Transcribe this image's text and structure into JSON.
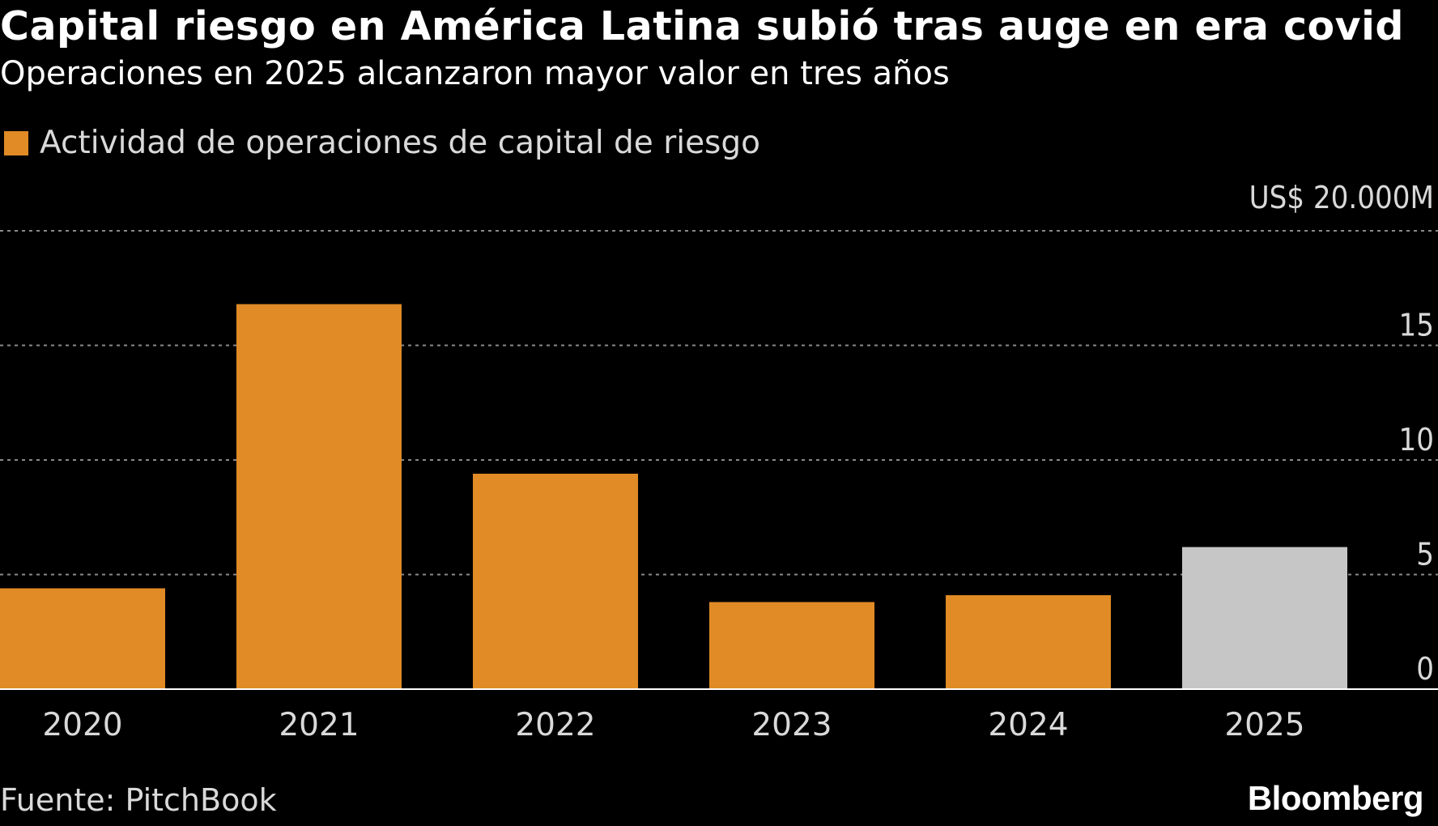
{
  "title": "Capital riesgo en América Latina subió tras auge en era covid",
  "subtitle": "Operaciones en 2025 alcanzaron mayor valor en tres años",
  "source": "Fuente: PitchBook",
  "brand": "Bloomberg",
  "colors": {
    "background": "#000000",
    "bar": "#e08b25",
    "bar_highlight": "#c6c6c6",
    "grid": "#8a8a8a",
    "axis_text": "#d9d9d9"
  },
  "chart_data": {
    "type": "bar",
    "categories": [
      "2020",
      "2021",
      "2022",
      "2023",
      "2024",
      "2025"
    ],
    "series": [
      {
        "name": "Actividad de operaciones de capital de riesgo",
        "values": [
          4.4,
          16.8,
          9.4,
          3.8,
          4.1,
          6.2
        ],
        "colors": [
          "bar",
          "bar",
          "bar",
          "bar",
          "bar",
          "bar_highlight"
        ]
      }
    ],
    "ylim": [
      0,
      20
    ],
    "yticks": [
      0,
      5,
      10,
      15,
      20
    ],
    "ytick_labels": [
      "0",
      "5",
      "10",
      "15",
      "US$ 20.000M"
    ],
    "y_axis_side": "right",
    "grid": true,
    "legend": "top-left"
  }
}
